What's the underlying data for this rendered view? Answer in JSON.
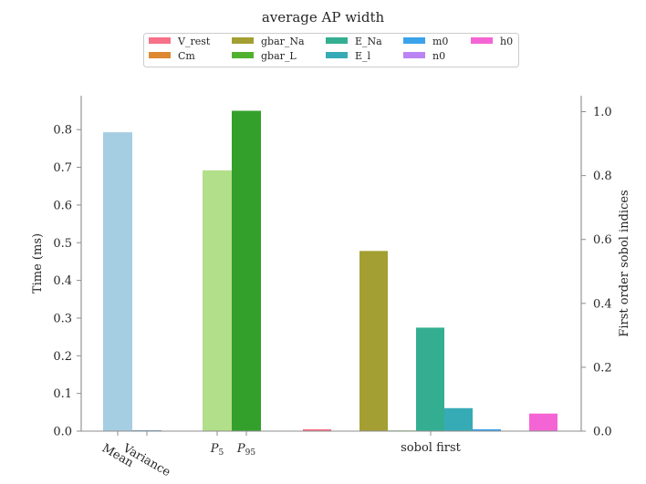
{
  "chart_data": {
    "type": "bar",
    "title": "average AP width",
    "ylabel_left": "Time (ms)",
    "ylabel_right": "First order sobol indices",
    "ylim_left": [
      0,
      0.89
    ],
    "ylim_right": [
      0,
      1.05
    ],
    "yticks_left": [
      "0.0",
      "0.1",
      "0.2",
      "0.3",
      "0.4",
      "0.5",
      "0.6",
      "0.7",
      "0.8"
    ],
    "yticks_right": [
      "0.0",
      "0.2",
      "0.4",
      "0.6",
      "0.8",
      "1.0"
    ],
    "x_labels": {
      "mean": "Mean",
      "variance": "Variance",
      "p5": "P",
      "p5_sub": "5",
      "p95": "P",
      "p95_sub": "95",
      "sobol": "sobol first"
    },
    "stats": [
      {
        "label": "Mean",
        "value": 0.793,
        "color": "#a6cee3"
      },
      {
        "label": "Variance",
        "value": 0.002,
        "color": "#1f78b4"
      },
      {
        "label": "P5",
        "value": 0.692,
        "color": "#b2df8a"
      },
      {
        "label": "P95",
        "value": 0.85,
        "color": "#33a02c"
      }
    ],
    "sobol_first": [
      {
        "name": "V_rest",
        "value": 0.006,
        "color": "#f77189"
      },
      {
        "name": "Cm",
        "value": 0.0,
        "color": "#dc8932"
      },
      {
        "name": "gbar_Na",
        "value": 0.564,
        "color": "#a39f32"
      },
      {
        "name": "gbar_L",
        "value": 0.002,
        "color": "#50b131"
      },
      {
        "name": "E_Na",
        "value": 0.324,
        "color": "#34ae91"
      },
      {
        "name": "E_l",
        "value": 0.072,
        "color": "#37abb5"
      },
      {
        "name": "m0",
        "value": 0.006,
        "color": "#3ba3ec"
      },
      {
        "name": "n0",
        "value": 0.0,
        "color": "#bb83f4"
      },
      {
        "name": "h0",
        "value": 0.055,
        "color": "#f564d4"
      }
    ],
    "legend_placement": "top-center",
    "grid": false
  }
}
